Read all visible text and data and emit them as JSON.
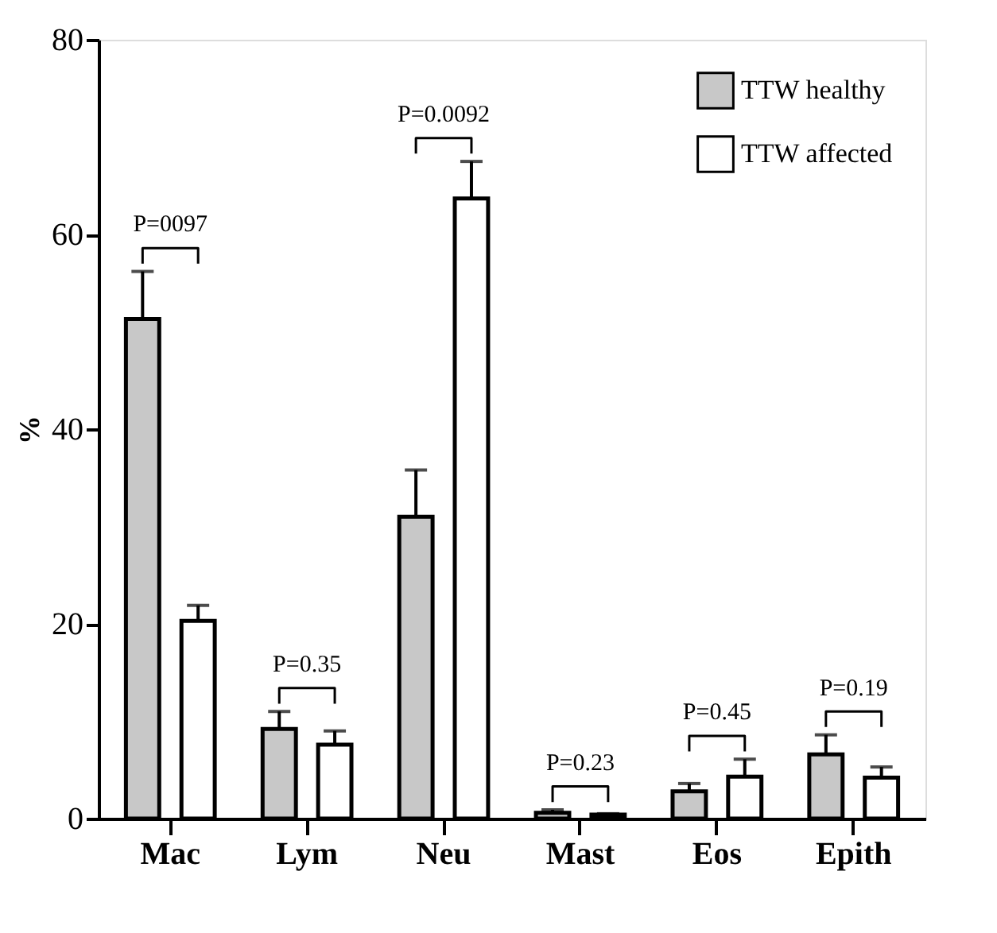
{
  "chart_data": {
    "type": "bar",
    "ylabel": "%",
    "categories": [
      "Mac",
      "Lym",
      "Neu",
      "Mast",
      "Eos",
      "Epith"
    ],
    "series": [
      {
        "name": "TTW healthy",
        "color": "#c8c8c8",
        "values": [
          51.3,
          9.2,
          31.0,
          0.6,
          2.8,
          6.6
        ],
        "errors": [
          [
            51.3,
            56.2
          ],
          [
            9.2,
            11.0
          ],
          [
            31.0,
            35.8
          ],
          [
            0.6,
            0.9
          ],
          [
            2.8,
            3.6
          ],
          [
            6.6,
            8.6
          ]
        ]
      },
      {
        "name": "TTW affected",
        "color": "#ffffff",
        "values": [
          20.3,
          7.6,
          63.7,
          0.4,
          4.3,
          4.2
        ],
        "errors": [
          [
            20.3,
            21.9
          ],
          [
            7.6,
            9.0
          ],
          [
            63.7,
            67.5
          ],
          [
            0.4,
            0.5
          ],
          [
            4.3,
            6.1
          ],
          [
            4.2,
            5.3
          ]
        ]
      }
    ],
    "ylim": [
      0,
      80
    ],
    "yticks": [
      0,
      20,
      40,
      60,
      80
    ],
    "grid": false,
    "legend": "top right",
    "annotations": [
      "P=0097",
      "P=0.35",
      "P=0.0092",
      "P=0.23",
      "P=0.45",
      "P=0.19"
    ]
  }
}
